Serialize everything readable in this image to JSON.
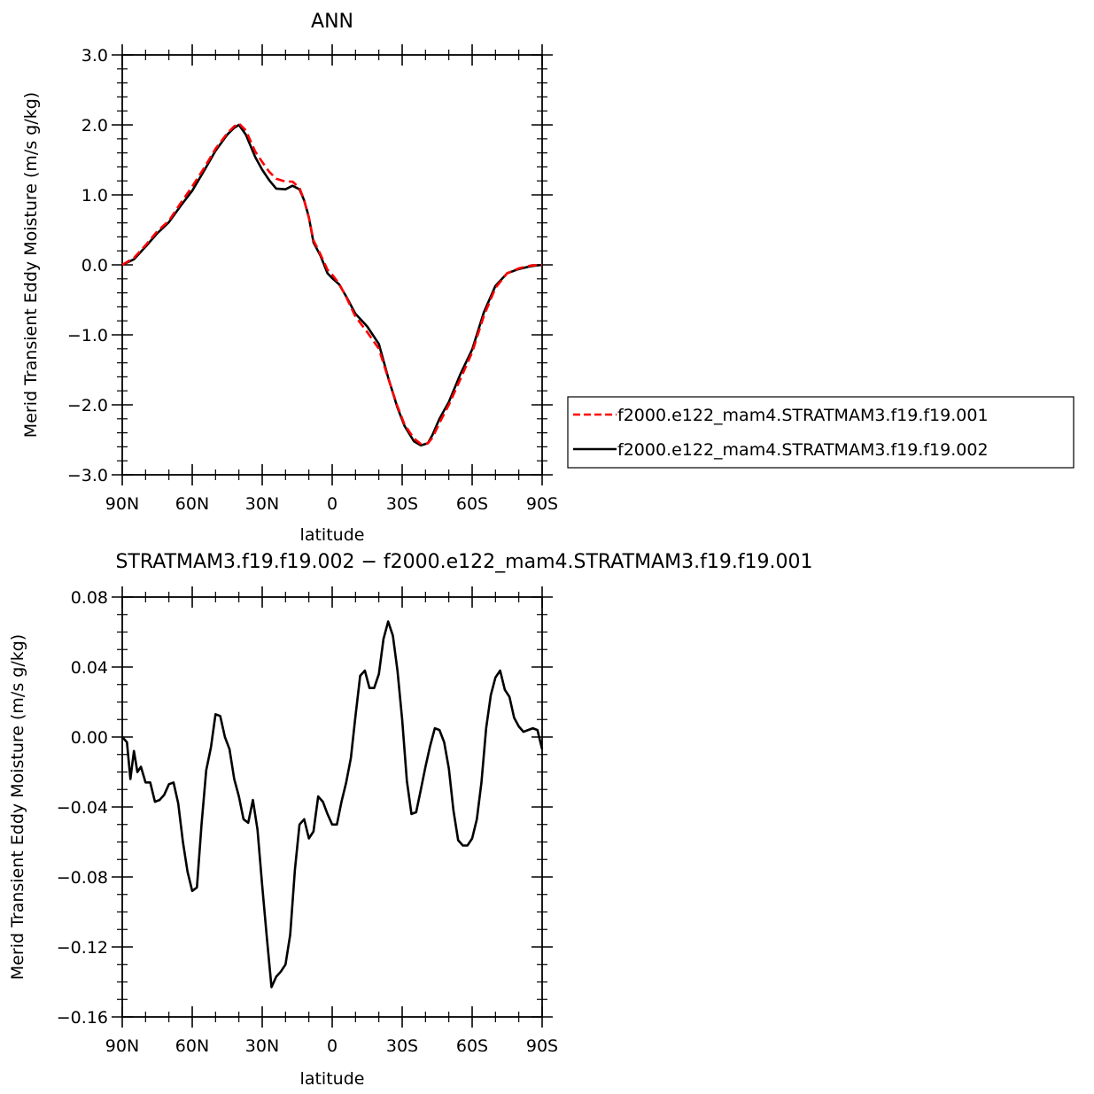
{
  "chart_data": [
    {
      "type": "line",
      "title": "ANN",
      "xlabel": "latitude",
      "ylabel": "Merid Transient Eddy Moisture (m/s g/kg)",
      "xlim": [
        -90,
        90
      ],
      "ylim": [
        -3.0,
        3.0
      ],
      "xticks": [
        -90,
        -60,
        -30,
        0,
        30,
        60,
        90
      ],
      "xtick_labels": [
        "90N",
        "60N",
        "30N",
        "0",
        "30S",
        "60S",
        "90S"
      ],
      "yticks": [
        -3.0,
        -2.0,
        -1.0,
        0.0,
        1.0,
        2.0,
        3.0
      ],
      "ytick_labels": [
        "−3.0",
        "−2.0",
        "−1.0",
        "0.0",
        "1.0",
        "2.0",
        "3.0"
      ],
      "legend_position": "right",
      "series": [
        {
          "name": "f2000.e122_mam4.STRATMAM3.f19.f19.001",
          "color": "#ff0000",
          "dash": "dashed",
          "x": [
            -90,
            -85,
            -80,
            -75,
            -70,
            -65,
            -60,
            -55,
            -50,
            -45,
            -42,
            -40,
            -37,
            -33,
            -30,
            -27,
            -24,
            -20,
            -17,
            -14,
            -12,
            -10,
            -8,
            -5,
            -2,
            0,
            3,
            6,
            10,
            15,
            20,
            24,
            28,
            31,
            35,
            38,
            41,
            43,
            46,
            50,
            55,
            60,
            65,
            70,
            75,
            80,
            85,
            90
          ],
          "y": [
            0.0,
            0.1,
            0.28,
            0.48,
            0.63,
            0.88,
            1.12,
            1.38,
            1.66,
            1.88,
            1.98,
            2.02,
            1.92,
            1.62,
            1.47,
            1.33,
            1.23,
            1.19,
            1.19,
            1.1,
            0.92,
            0.67,
            0.35,
            0.15,
            -0.07,
            -0.14,
            -0.27,
            -0.46,
            -0.74,
            -0.96,
            -1.2,
            -1.62,
            -2.02,
            -2.28,
            -2.48,
            -2.56,
            -2.55,
            -2.47,
            -2.26,
            -2.0,
            -1.63,
            -1.25,
            -0.73,
            -0.33,
            -0.12,
            -0.05,
            -0.01,
            0.0
          ]
        },
        {
          "name": "f2000.e122_mam4.STRATMAM3.f19.f19.002",
          "color": "#000000",
          "dash": "solid",
          "x": [
            -90,
            -85,
            -80,
            -75,
            -70,
            -65,
            -60,
            -55,
            -50,
            -45,
            -42,
            -40,
            -37,
            -33,
            -30,
            -27,
            -24,
            -20,
            -17,
            -14,
            -12,
            -10,
            -8,
            -5,
            -2,
            0,
            3,
            6,
            10,
            15,
            20,
            24,
            28,
            31,
            35,
            38,
            41,
            43,
            46,
            50,
            55,
            60,
            65,
            70,
            75,
            80,
            85,
            90
          ],
          "y": [
            0.0,
            0.08,
            0.26,
            0.45,
            0.61,
            0.84,
            1.06,
            1.34,
            1.63,
            1.86,
            1.96,
            2.0,
            1.86,
            1.54,
            1.36,
            1.21,
            1.09,
            1.08,
            1.13,
            1.08,
            0.92,
            0.68,
            0.32,
            0.13,
            -0.12,
            -0.19,
            -0.28,
            -0.45,
            -0.7,
            -0.88,
            -1.13,
            -1.61,
            -2.04,
            -2.3,
            -2.52,
            -2.58,
            -2.55,
            -2.43,
            -2.2,
            -1.96,
            -1.56,
            -1.21,
            -0.68,
            -0.3,
            -0.12,
            -0.06,
            -0.02,
            0.0
          ]
        }
      ]
    },
    {
      "type": "line",
      "title": "STRATMAM3.f19.f19.002 − f2000.e122_mam4.STRATMAM3.f19.f19.001",
      "xlabel": "latitude",
      "ylabel": "Merid Transient Eddy Moisture (m/s g/kg)",
      "xlim": [
        -90,
        90
      ],
      "ylim": [
        -0.16,
        0.08
      ],
      "xticks": [
        -90,
        -60,
        -30,
        0,
        30,
        60,
        90
      ],
      "xtick_labels": [
        "90N",
        "60N",
        "30N",
        "0",
        "30S",
        "60S",
        "90S"
      ],
      "yticks": [
        -0.16,
        -0.12,
        -0.08,
        -0.04,
        0.0,
        0.04,
        0.08
      ],
      "ytick_labels": [
        "−0.16",
        "−0.12",
        "−0.08",
        "−0.04",
        "0.00",
        "0.04",
        "0.08"
      ],
      "series": [
        {
          "color": "#000000",
          "dash": "solid",
          "x": [
            -90,
            -88,
            -86.5,
            -85,
            -83.5,
            -82,
            -80,
            -78,
            -76,
            -74,
            -72,
            -70,
            -68,
            -66,
            -64,
            -62,
            -60,
            -58,
            -56,
            -54,
            -52,
            -50,
            -48,
            -46,
            -44,
            -42,
            -40,
            -38,
            -36,
            -34,
            -32,
            -30,
            -28,
            -26,
            -24,
            -22,
            -20,
            -18,
            -16,
            -14,
            -12,
            -10,
            -8,
            -6,
            -4,
            -2,
            0,
            2,
            4,
            6,
            8,
            10,
            12,
            14,
            16,
            18,
            20,
            22,
            24,
            26,
            28,
            30,
            32,
            34,
            36,
            38,
            40,
            42,
            44,
            46,
            48,
            50,
            52,
            54,
            56,
            58,
            60,
            62,
            64,
            66,
            68,
            70,
            72,
            74,
            76,
            78,
            80,
            82,
            84,
            86,
            88,
            90
          ],
          "y": [
            0.0,
            -0.003,
            -0.024,
            -0.008,
            -0.02,
            -0.017,
            -0.026,
            -0.026,
            -0.037,
            -0.036,
            -0.033,
            -0.027,
            -0.026,
            -0.038,
            -0.06,
            -0.077,
            -0.088,
            -0.086,
            -0.05,
            -0.019,
            -0.006,
            0.013,
            0.012,
            0.0,
            -0.007,
            -0.024,
            -0.034,
            -0.047,
            -0.049,
            -0.036,
            -0.053,
            -0.085,
            -0.115,
            -0.143,
            -0.137,
            -0.134,
            -0.13,
            -0.113,
            -0.076,
            -0.05,
            -0.047,
            -0.058,
            -0.054,
            -0.034,
            -0.037,
            -0.044,
            -0.05,
            -0.05,
            -0.037,
            -0.026,
            -0.012,
            0.012,
            0.035,
            0.038,
            0.028,
            0.028,
            0.036,
            0.056,
            0.066,
            0.058,
            0.038,
            0.01,
            -0.025,
            -0.044,
            -0.043,
            -0.03,
            -0.017,
            -0.005,
            0.005,
            0.004,
            -0.003,
            -0.018,
            -0.042,
            -0.059,
            -0.062,
            -0.062,
            -0.058,
            -0.047,
            -0.026,
            0.005,
            0.024,
            0.034,
            0.038,
            0.027,
            0.023,
            0.011,
            0.006,
            0.003,
            0.004,
            0.005,
            0.004,
            -0.007
          ]
        }
      ]
    }
  ]
}
